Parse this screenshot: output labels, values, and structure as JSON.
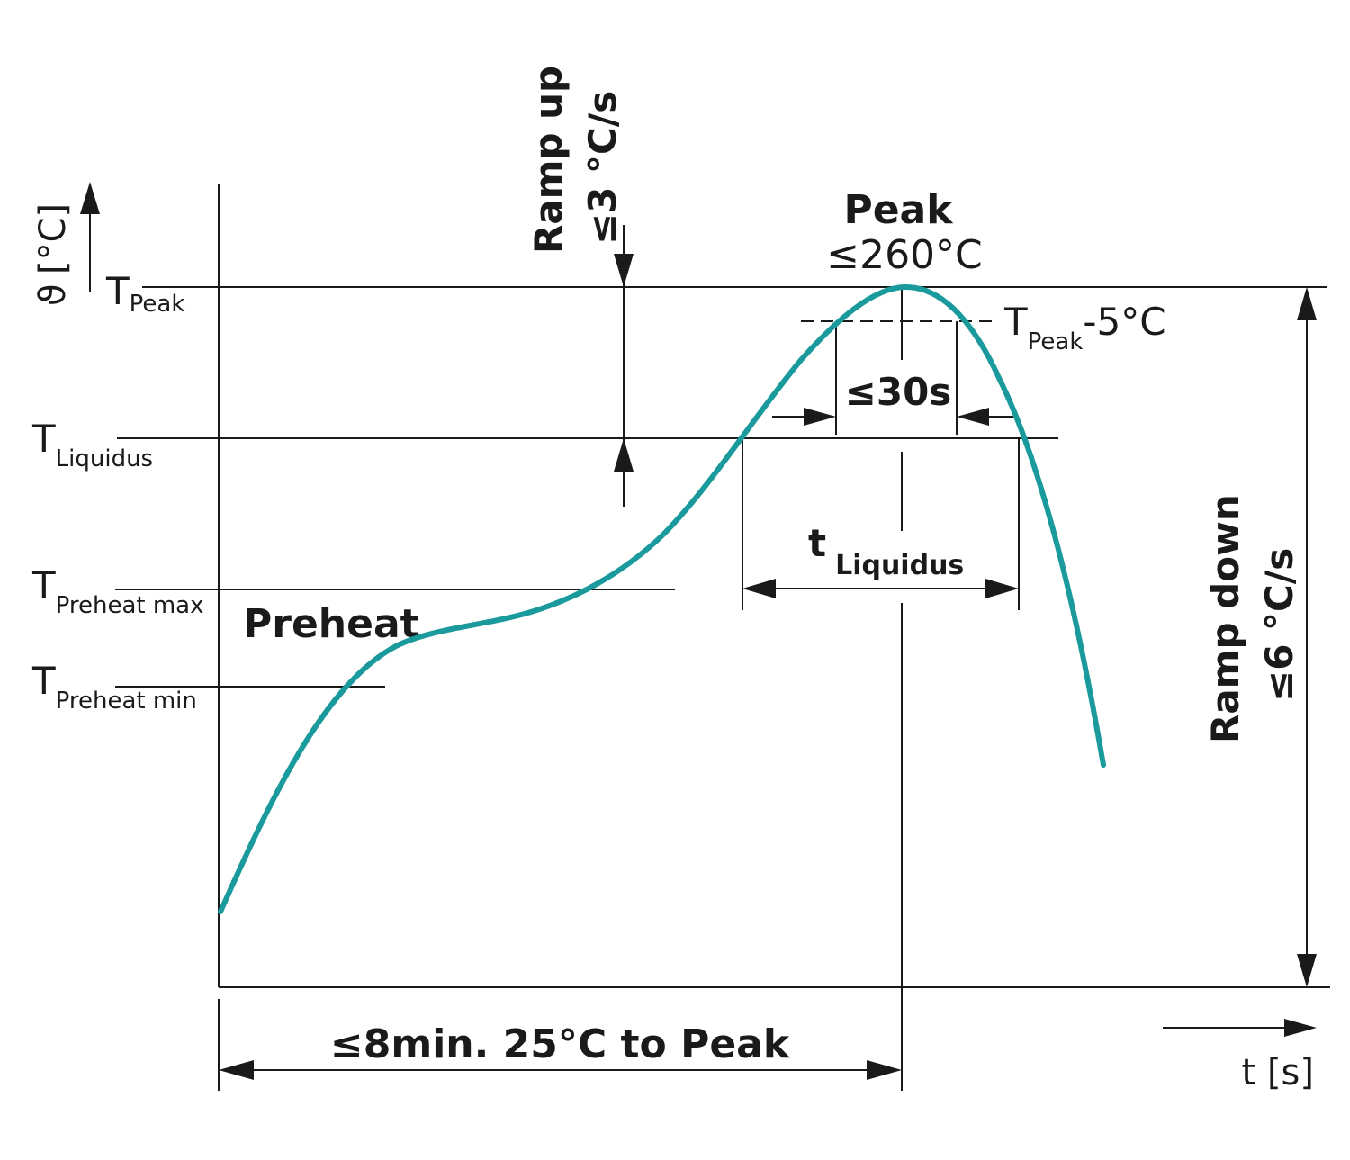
{
  "colors": {
    "curve": "#1a9a9c",
    "ink": "#1a1a1a",
    "background": "#ffffff"
  },
  "axes": {
    "y_symbol": "ϑ",
    "y_unit": "[°C]",
    "x_label": "t [s]"
  },
  "levels": {
    "t_peak": {
      "main": "T",
      "sub": "Peak"
    },
    "t_liquidus": {
      "main": "T",
      "sub": "Liquidus"
    },
    "t_preheat_max": {
      "main": "T",
      "sub": "Preheat max"
    },
    "t_preheat_min": {
      "main": "T",
      "sub": "Preheat min"
    }
  },
  "annotations": {
    "peak_title": "Peak",
    "peak_value": "≤260°C",
    "peak_minus": {
      "main": "T",
      "sub": "Peak",
      "suffix": "-5°C"
    },
    "within_5c_time": "≤30s",
    "time_liquidus": {
      "main": "t",
      "sub": "Liquidus"
    },
    "preheat": "Preheat",
    "ramp_up": {
      "line1": "Ramp up",
      "line2": "≤3 °C/s"
    },
    "ramp_down": {
      "line1": "Ramp down",
      "line2": "≤6 °C/s"
    },
    "total_time": "≤8min. 25°C to Peak"
  }
}
